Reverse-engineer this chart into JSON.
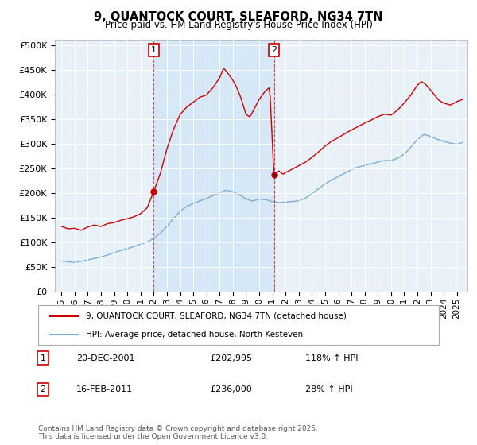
{
  "title": "9, QUANTOCK COURT, SLEAFORD, NG34 7TN",
  "subtitle": "Price paid vs. HM Land Registry's House Price Index (HPI)",
  "legend_line1": "9, QUANTOCK COURT, SLEAFORD, NG34 7TN (detached house)",
  "legend_line2": "HPI: Average price, detached house, North Kesteven",
  "transaction1_date": "20-DEC-2001",
  "transaction1_price": "£202,995",
  "transaction1_hpi": "118% ↑ HPI",
  "transaction1_year": 2002.0,
  "transaction1_value": 202995,
  "transaction2_date": "16-FEB-2011",
  "transaction2_price": "£236,000",
  "transaction2_hpi": "28% ↑ HPI",
  "transaction2_year": 2011.12,
  "transaction2_value": 236000,
  "footer": "Contains HM Land Registry data © Crown copyright and database right 2025.\nThis data is licensed under the Open Government Licence v3.0.",
  "red_color": "#cc0000",
  "blue_color": "#7bafd4",
  "shade_color": "#d6e8f7",
  "background_color": "#e8f0f8",
  "ylim_min": 0,
  "ylim_max": 510000,
  "xlim_min": 1994.5,
  "xlim_max": 2025.8,
  "yticks": [
    0,
    50000,
    100000,
    150000,
    200000,
    250000,
    300000,
    350000,
    400000,
    450000,
    500000
  ],
  "ytick_labels": [
    "£0",
    "£50K",
    "£100K",
    "£150K",
    "£200K",
    "£250K",
    "£300K",
    "£350K",
    "£400K",
    "£450K",
    "£500K"
  ]
}
